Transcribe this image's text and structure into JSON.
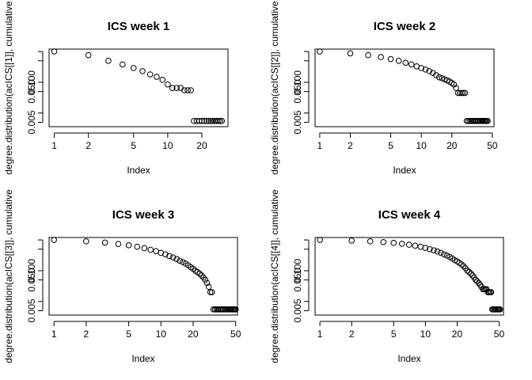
{
  "figure": {
    "background": "#ffffff",
    "point_color": "#000000",
    "line_color": "#000000"
  },
  "chart_data": [
    {
      "type": "scatter",
      "title": "ICS week 1",
      "xlabel": "Index",
      "ylabel": "degree.distribution(acICS[[1]], cumulative",
      "xscale": "log",
      "yscale": "log",
      "xlim": [
        0.9,
        34
      ],
      "ylim": [
        0.0036,
        1.2
      ],
      "xticks": [
        1,
        2,
        5,
        10,
        20
      ],
      "xticklabels": [
        "1",
        "2",
        "5",
        "10",
        "20"
      ],
      "yticks": [
        0.005,
        0.01,
        0.05,
        0.1,
        0.5,
        1.0
      ],
      "yticklabels": [
        "0.005",
        "",
        "0.050",
        "0.100",
        "",
        ""
      ],
      "grid": false,
      "x": [
        1,
        2,
        3,
        4,
        5,
        6,
        7,
        8,
        9,
        10,
        11,
        12,
        13,
        14,
        15,
        16,
        17,
        18,
        19,
        20,
        21,
        22,
        23,
        24,
        25,
        26,
        27,
        28,
        29,
        30
      ],
      "y": [
        1.0,
        0.76,
        0.5,
        0.38,
        0.29,
        0.23,
        0.18,
        0.15,
        0.12,
        0.085,
        0.065,
        0.065,
        0.065,
        0.055,
        0.055,
        0.055,
        0.0055,
        0.0055,
        0.0055,
        0.0055,
        0.0055,
        0.0055,
        0.0055,
        0.0055,
        0.0055,
        0.0055,
        0.0055,
        0.0055,
        0.0055,
        0.0055
      ]
    },
    {
      "type": "scatter",
      "title": "ICS week 2",
      "xlabel": "Index",
      "ylabel": "degree.distribution(acICS[[2]], cumulative",
      "xscale": "log",
      "yscale": "log",
      "xlim": [
        0.9,
        52
      ],
      "ylim": [
        0.0036,
        1.2
      ],
      "xticks": [
        1,
        2,
        5,
        10,
        20,
        50
      ],
      "xticklabels": [
        "1",
        "2",
        "5",
        "10",
        "20",
        "50"
      ],
      "yticks": [
        0.005,
        0.01,
        0.05,
        0.1,
        0.5,
        1.0
      ],
      "yticklabels": [
        "0.005",
        "",
        "0.050",
        "0.100",
        "",
        ""
      ],
      "grid": false,
      "x": [
        1,
        2,
        3,
        4,
        5,
        6,
        7,
        8,
        9,
        10,
        11,
        12,
        13,
        14,
        15,
        16,
        17,
        18,
        19,
        20,
        21,
        22,
        23,
        24,
        25,
        26,
        27,
        28,
        29,
        30,
        31,
        32,
        33,
        34,
        35,
        36,
        37,
        38,
        39,
        40,
        41,
        42,
        43,
        44,
        45
      ],
      "y": [
        1.0,
        0.87,
        0.76,
        0.66,
        0.57,
        0.5,
        0.43,
        0.38,
        0.33,
        0.29,
        0.26,
        0.23,
        0.2,
        0.17,
        0.145,
        0.135,
        0.125,
        0.115,
        0.105,
        0.095,
        0.085,
        0.065,
        0.045,
        0.045,
        0.045,
        0.045,
        0.045,
        0.0055,
        0.0055,
        0.0055,
        0.0055,
        0.0055,
        0.0055,
        0.0055,
        0.0055,
        0.0055,
        0.0055,
        0.0055,
        0.0055,
        0.0055,
        0.0055,
        0.0055,
        0.0055,
        0.0055,
        0.0055
      ]
    },
    {
      "type": "scatter",
      "title": "ICS week 3",
      "xlabel": "Index",
      "ylabel": "degree.distribution(acICS[[3]], cumulative",
      "xscale": "log",
      "yscale": "log",
      "xlim": [
        0.9,
        52
      ],
      "ylim": [
        0.0036,
        1.2
      ],
      "xticks": [
        1,
        2,
        5,
        10,
        20,
        50
      ],
      "xticklabels": [
        "1",
        "2",
        "5",
        "10",
        "20",
        "50"
      ],
      "yticks": [
        0.005,
        0.01,
        0.05,
        0.1,
        0.5,
        1.0
      ],
      "yticklabels": [
        "0.005",
        "",
        "0.050",
        "0.100",
        "",
        ""
      ],
      "grid": false,
      "x": [
        1,
        2,
        3,
        4,
        5,
        6,
        7,
        8,
        9,
        10,
        11,
        12,
        13,
        14,
        15,
        16,
        17,
        18,
        19,
        20,
        21,
        22,
        23,
        24,
        25,
        26,
        27,
        28,
        29,
        30,
        31,
        32,
        33,
        34,
        35,
        36,
        37,
        38,
        39,
        40,
        41,
        42,
        43,
        44,
        45,
        46,
        47,
        48,
        49,
        50
      ],
      "y": [
        1.0,
        0.9,
        0.82,
        0.74,
        0.67,
        0.6,
        0.54,
        0.48,
        0.43,
        0.38,
        0.34,
        0.3,
        0.27,
        0.24,
        0.21,
        0.19,
        0.17,
        0.15,
        0.13,
        0.115,
        0.1,
        0.09,
        0.08,
        0.07,
        0.06,
        0.05,
        0.04,
        0.03,
        0.02,
        0.02,
        0.0055,
        0.0055,
        0.0055,
        0.0055,
        0.0055,
        0.0055,
        0.0055,
        0.0055,
        0.0055,
        0.0055,
        0.0055,
        0.0055,
        0.0055,
        0.0055,
        0.0055,
        0.0055,
        0.0055,
        0.0055,
        0.0055,
        0.0055
      ]
    },
    {
      "type": "scatter",
      "title": "ICS week 4",
      "xlabel": "Index",
      "ylabel": "degree.distribution(acICS[[4]], cumulative",
      "xscale": "log",
      "yscale": "log",
      "xlim": [
        0.9,
        55
      ],
      "ylim": [
        0.0036,
        1.2
      ],
      "xticks": [
        1,
        2,
        5,
        10,
        20,
        50
      ],
      "xticklabels": [
        "1",
        "2",
        "5",
        "10",
        "20",
        "50"
      ],
      "yticks": [
        0.005,
        0.01,
        0.05,
        0.1,
        0.5,
        1.0
      ],
      "yticklabels": [
        "0.005",
        "",
        "0.050",
        "0.100",
        "",
        ""
      ],
      "grid": false,
      "x": [
        1,
        2,
        3,
        4,
        5,
        6,
        7,
        8,
        9,
        10,
        11,
        12,
        13,
        14,
        15,
        16,
        17,
        18,
        19,
        20,
        21,
        22,
        23,
        24,
        25,
        26,
        27,
        28,
        29,
        30,
        31,
        32,
        33,
        34,
        35,
        36,
        37,
        38,
        39,
        40,
        41,
        42,
        43,
        44,
        45,
        46,
        47,
        48,
        49,
        50,
        51
      ],
      "y": [
        1.0,
        0.95,
        0.9,
        0.85,
        0.8,
        0.75,
        0.7,
        0.65,
        0.6,
        0.55,
        0.5,
        0.46,
        0.42,
        0.38,
        0.34,
        0.31,
        0.28,
        0.25,
        0.22,
        0.2,
        0.18,
        0.16,
        0.14,
        0.12,
        0.1,
        0.09,
        0.08,
        0.07,
        0.06,
        0.05,
        0.045,
        0.04,
        0.035,
        0.03,
        0.025,
        0.025,
        0.025,
        0.025,
        0.02,
        0.02,
        0.02,
        0.02,
        0.0055,
        0.0055,
        0.0055,
        0.0055,
        0.0055,
        0.0055,
        0.0055,
        0.0055,
        0.0055
      ]
    }
  ]
}
